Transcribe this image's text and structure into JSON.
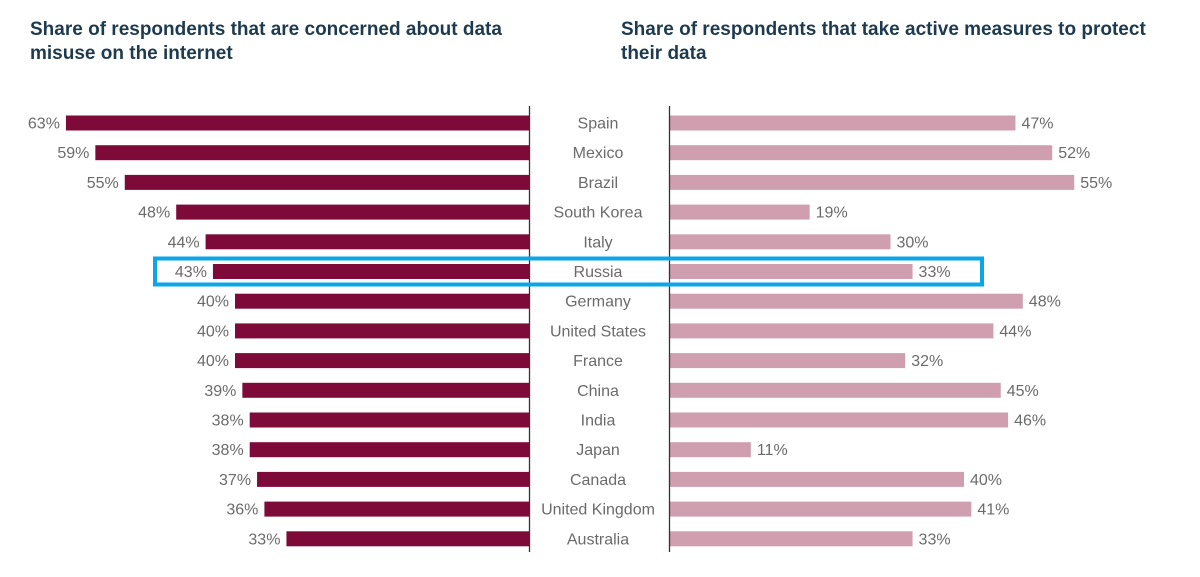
{
  "titles": {
    "left": "Share of respondents that are concerned about data misuse on the internet",
    "right": "Share of respondents that take active measures to protect their data"
  },
  "colors": {
    "left_bar": "#7e0a3a",
    "right_bar": "#cf9fb0",
    "highlight": "#0aa6e8",
    "axis": "#333333"
  },
  "chart_data": [
    {
      "type": "bar",
      "orientation": "horizontal",
      "direction": "right-to-left",
      "title": "Share of respondents that are concerned about data misuse on the internet",
      "categories": [
        "Spain",
        "Mexico",
        "Brazil",
        "South Korea",
        "Italy",
        "Russia",
        "Germany",
        "United States",
        "France",
        "China",
        "India",
        "Japan",
        "Canada",
        "United Kingdom",
        "Australia"
      ],
      "values": [
        63,
        59,
        55,
        48,
        44,
        43,
        40,
        40,
        40,
        39,
        38,
        38,
        37,
        36,
        33
      ],
      "unit": "%",
      "highlighted_category": "Russia"
    },
    {
      "type": "bar",
      "orientation": "horizontal",
      "direction": "left-to-right",
      "title": "Share of respondents that take active measures to protect their data",
      "categories": [
        "Spain",
        "Mexico",
        "Brazil",
        "South Korea",
        "Italy",
        "Russia",
        "Germany",
        "United States",
        "France",
        "China",
        "India",
        "Japan",
        "Canada",
        "United Kingdom",
        "Australia"
      ],
      "values": [
        47,
        52,
        55,
        19,
        30,
        33,
        48,
        44,
        32,
        45,
        46,
        11,
        40,
        41,
        33
      ],
      "unit": "%",
      "highlighted_category": "Russia"
    }
  ]
}
